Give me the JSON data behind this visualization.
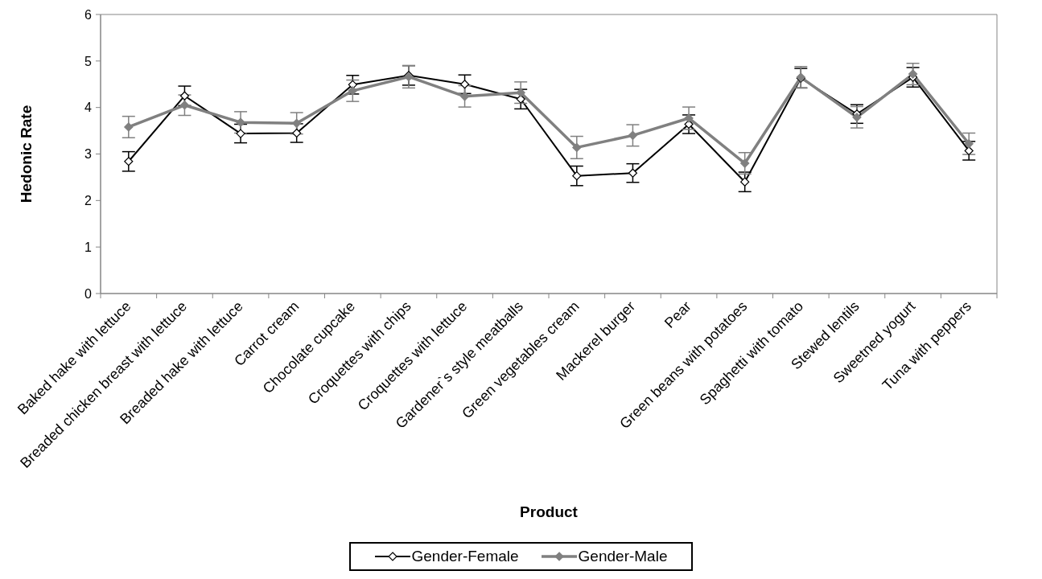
{
  "chart_data": {
    "type": "line",
    "xlabel": "Product",
    "ylabel": "Hedonic Rate",
    "categories": [
      "Baked hake with lettuce",
      "Breaded chicken breast with lettuce",
      "Breaded hake with lettuce",
      "Carrot cream",
      "Chocolate cupcake",
      "Croquettes with chips",
      "Croquettes with lettuce",
      "Gardener`s style meatballs",
      "Green vegetables cream",
      "Mackerel burger",
      "Pear",
      "Green beans with potatoes",
      "Spaghetti with tomato",
      "Stewed lentils",
      "Sweetned yogurt",
      "Tuna with peppers"
    ],
    "series": [
      {
        "name": "Gender-Female",
        "color": "#000000",
        "values": [
          2.84,
          4.25,
          3.44,
          3.45,
          4.49,
          4.69,
          4.5,
          4.18,
          2.53,
          2.59,
          3.64,
          2.4,
          4.63,
          3.86,
          4.65,
          3.07
        ],
        "errors": [
          0.21,
          0.21,
          0.2,
          0.2,
          0.2,
          0.21,
          0.2,
          0.21,
          0.21,
          0.2,
          0.2,
          0.21,
          0.21,
          0.2,
          0.21,
          0.2
        ]
      },
      {
        "name": "Gender-Male",
        "color": "#808080",
        "values": [
          3.58,
          4.05,
          3.68,
          3.66,
          4.36,
          4.66,
          4.24,
          4.32,
          3.14,
          3.4,
          3.77,
          2.8,
          4.65,
          3.79,
          4.72,
          3.22
        ],
        "errors": [
          0.23,
          0.22,
          0.23,
          0.23,
          0.23,
          0.24,
          0.23,
          0.23,
          0.24,
          0.23,
          0.24,
          0.23,
          0.23,
          0.23,
          0.23,
          0.23
        ]
      }
    ],
    "ylim": [
      0,
      6
    ],
    "yticks": [
      0,
      1,
      2,
      3,
      4,
      5,
      6
    ],
    "legend": "bottom",
    "marker": "diamond",
    "line_style": "solid"
  }
}
